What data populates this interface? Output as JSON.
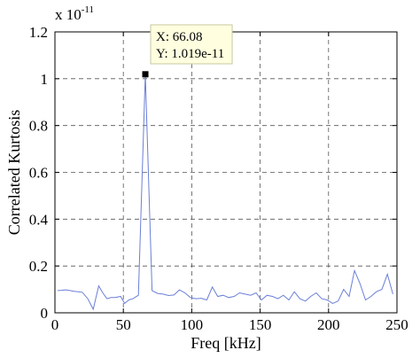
{
  "chart_data": {
    "type": "line",
    "xlabel": "Freq [kHz]",
    "ylabel": "Correlated Kurtosis",
    "y_exponent_label": {
      "base": "x 10",
      "exponent": "-11"
    },
    "xlim": [
      0,
      250
    ],
    "ylim": [
      0,
      1.2
    ],
    "x_ticks": [
      0,
      50,
      100,
      150,
      200,
      250
    ],
    "y_ticks": [
      0,
      0.2,
      0.4,
      0.6,
      0.8,
      1,
      1.2
    ],
    "x_tick_labels": [
      "0",
      "50",
      "100",
      "150",
      "200",
      "250"
    ],
    "y_tick_labels": [
      "0",
      "0.2",
      "0.4",
      "0.6",
      "0.8",
      "1",
      "1.2"
    ],
    "grid": true,
    "series": [
      {
        "color": "#6b7fd6",
        "x": [
          2,
          5,
          8,
          11,
          14,
          17,
          20,
          24,
          28,
          32,
          35,
          38,
          41,
          44,
          48,
          51,
          54,
          57,
          61,
          66.08,
          71,
          75,
          79,
          83,
          87,
          91,
          95,
          99,
          103,
          107,
          111,
          115,
          119,
          123,
          127,
          131,
          135,
          139,
          143,
          147,
          151,
          155,
          159,
          163,
          167,
          171,
          175,
          179,
          183,
          187,
          191,
          195,
          199,
          203,
          207,
          211,
          215,
          219,
          223,
          227,
          231,
          235,
          239,
          243,
          247
        ],
        "y": [
          0.095,
          0.096,
          0.098,
          0.095,
          0.092,
          0.09,
          0.088,
          0.06,
          0.015,
          0.115,
          0.085,
          0.06,
          0.065,
          0.065,
          0.07,
          0.04,
          0.055,
          0.06,
          0.075,
          1.019,
          0.095,
          0.083,
          0.08,
          0.074,
          0.076,
          0.098,
          0.085,
          0.065,
          0.06,
          0.062,
          0.055,
          0.11,
          0.07,
          0.075,
          0.065,
          0.07,
          0.085,
          0.08,
          0.075,
          0.085,
          0.055,
          0.075,
          0.07,
          0.06,
          0.075,
          0.055,
          0.09,
          0.06,
          0.05,
          0.07,
          0.085,
          0.06,
          0.055,
          0.04,
          0.05,
          0.1,
          0.07,
          0.18,
          0.125,
          0.055,
          0.07,
          0.09,
          0.1,
          0.165,
          0.08
        ]
      }
    ],
    "datatip": {
      "x": 66.08,
      "y": 1.019,
      "x_text": "X: 66.08",
      "y_text": "Y: 1.019e-11"
    }
  }
}
